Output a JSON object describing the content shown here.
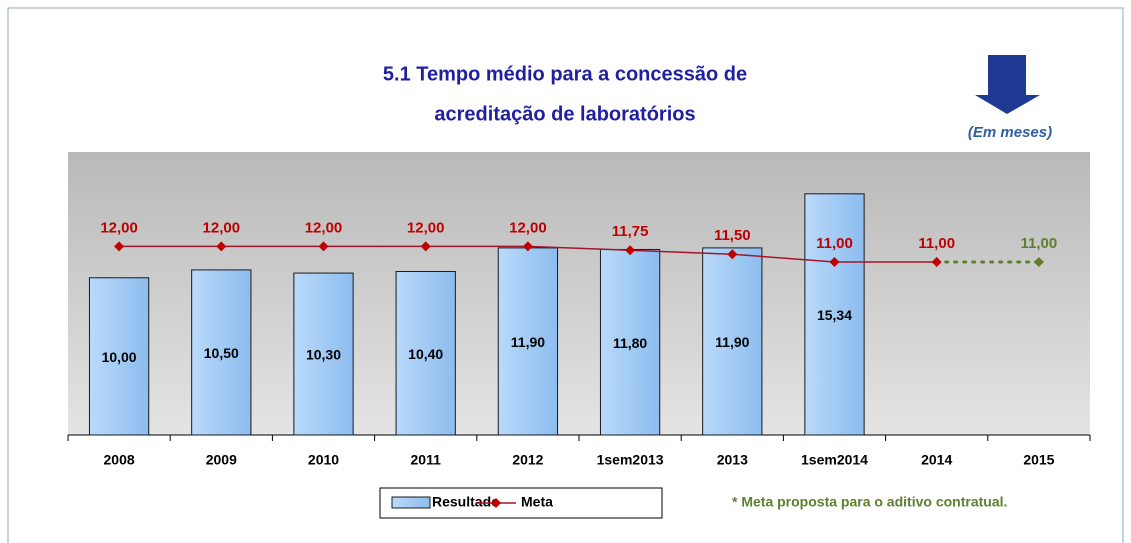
{
  "chart_data": {
    "type": "bar_line",
    "title": [
      "5.1 Tempo médio para a concessão de",
      "acreditação de laboratórios"
    ],
    "unit_note": "(Em meses)",
    "footnote": "* Meta proposta para o aditivo contratual.",
    "categories": [
      "2008",
      "2009",
      "2010",
      "2011",
      "2012",
      "1sem2013",
      "2013",
      "1sem2014",
      "2014",
      "2015"
    ],
    "ylim": [
      0,
      18
    ],
    "series": [
      {
        "name": "Resultado",
        "type": "bar",
        "color": "#9fcaf5",
        "values": [
          10.0,
          10.5,
          10.3,
          10.4,
          11.9,
          11.8,
          11.9,
          15.34,
          null,
          null
        ],
        "value_labels": [
          "10,00",
          "10,50",
          "10,30",
          "10,40",
          "11,90",
          "11,80",
          "11,90",
          "15,34",
          null,
          null
        ]
      },
      {
        "name": "Meta",
        "type": "line",
        "color": "#a3162a",
        "marker_color": "#c00000",
        "values": [
          12,
          12,
          12,
          12,
          12,
          11.75,
          11.5,
          11,
          11,
          11
        ],
        "value_labels": [
          "12,00",
          "12,00",
          "12,00",
          "12,00",
          "12,00",
          "11,75",
          "11,50",
          "11,00",
          "11,00",
          "11,00"
        ],
        "projection": {
          "from": 8,
          "color": "#5e7f2e"
        }
      }
    ]
  }
}
